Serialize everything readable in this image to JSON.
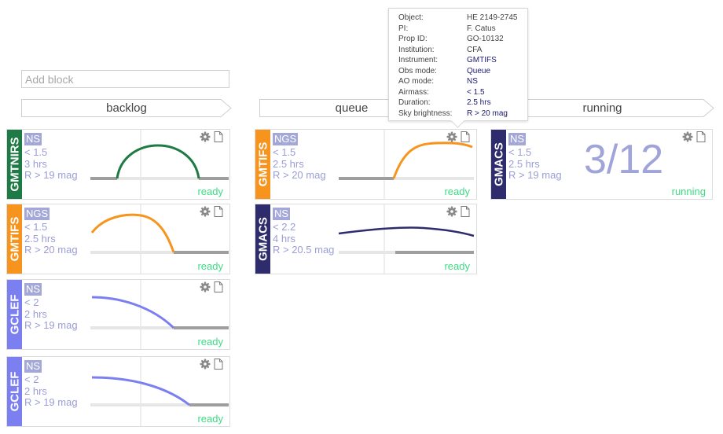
{
  "add_block": {
    "placeholder": "Add block"
  },
  "columns": [
    {
      "label": "backlog"
    },
    {
      "label": "queue"
    },
    {
      "label": "running"
    }
  ],
  "colors": {
    "GMTNIRS": "#1e7b45",
    "GMTIFS": "#f7941d",
    "GCLEF": "#7b7ff0",
    "GMACS": "#2f2c6e",
    "ready": "#3ddc84",
    "ao_badge": "#a4a8d8",
    "info_text": "#9a9ed6"
  },
  "cards": {
    "backlog_1": {
      "instrument": "GMTNIRS",
      "ao": "NS",
      "airmass": "< 1.5",
      "duration": "3 hrs",
      "sky": "R > 19 mag",
      "status": "ready",
      "curve_color": "#1e7b45",
      "icons": [
        "gear-icon",
        "document-icon"
      ]
    },
    "backlog_2": {
      "instrument": "GMTIFS",
      "ao": "NGS",
      "airmass": "< 1.5",
      "duration": "2.5 hrs",
      "sky": "R > 20 mag",
      "status": "ready",
      "curve_color": "#f7941d",
      "icons": [
        "gear-icon",
        "document-icon"
      ]
    },
    "backlog_3": {
      "instrument": "GCLEF",
      "ao": "NS",
      "airmass": "< 2",
      "duration": "2 hrs",
      "sky": "R > 19 mag",
      "status": "ready",
      "curve_color": "#7b7ff0",
      "icons": [
        "gear-icon",
        "document-icon"
      ]
    },
    "backlog_4": {
      "instrument": "GCLEF",
      "ao": "NS",
      "airmass": "< 2",
      "duration": "2 hrs",
      "sky": "R > 19 mag",
      "status": "ready",
      "curve_color": "#7b7ff0",
      "icons": [
        "gear-icon",
        "document-icon"
      ]
    },
    "queue_1": {
      "instrument": "GMTIFS",
      "ao": "NGS",
      "airmass": "< 1.5",
      "duration": "2.5 hrs",
      "sky": "R > 20 mag",
      "status": "ready",
      "curve_color": "#f7941d",
      "icons": [
        "gear-icon",
        "document-icon"
      ]
    },
    "queue_2": {
      "instrument": "GMACS",
      "ao": "NS",
      "airmass": "< 2.2",
      "duration": "4 hrs",
      "sky": "R > 20.5 mag",
      "status": "ready",
      "curve_color": "#2f2c6e",
      "icons": [
        "gear-icon",
        "document-icon"
      ]
    },
    "running_1": {
      "instrument": "GMACS",
      "ao": "NS",
      "airmass": "< 1.5",
      "duration": "2.5 hrs",
      "sky": "R > 19 mag",
      "status": "running",
      "progress": "3/12",
      "icons": [
        "gear-icon",
        "document-icon"
      ]
    }
  },
  "tooltip": {
    "rows": [
      {
        "key": "Object:",
        "value": "HE 2149-2745"
      },
      {
        "key": "PI:",
        "value": "F. Catus"
      },
      {
        "key": "Prop ID:",
        "value": "GO-10132"
      },
      {
        "key": "Institution:",
        "value": "CFA"
      },
      {
        "key": "Instrument:",
        "value": "GMTIFS"
      },
      {
        "key": "Obs mode:",
        "value": "Queue"
      },
      {
        "key": "AO mode:",
        "value": "NS"
      },
      {
        "key": "Airmass:",
        "value": "< 1.5"
      },
      {
        "key": "Duration:",
        "value": "2.5 hrs"
      },
      {
        "key": "Sky brightness:",
        "value": "R > 20 mag"
      }
    ]
  }
}
